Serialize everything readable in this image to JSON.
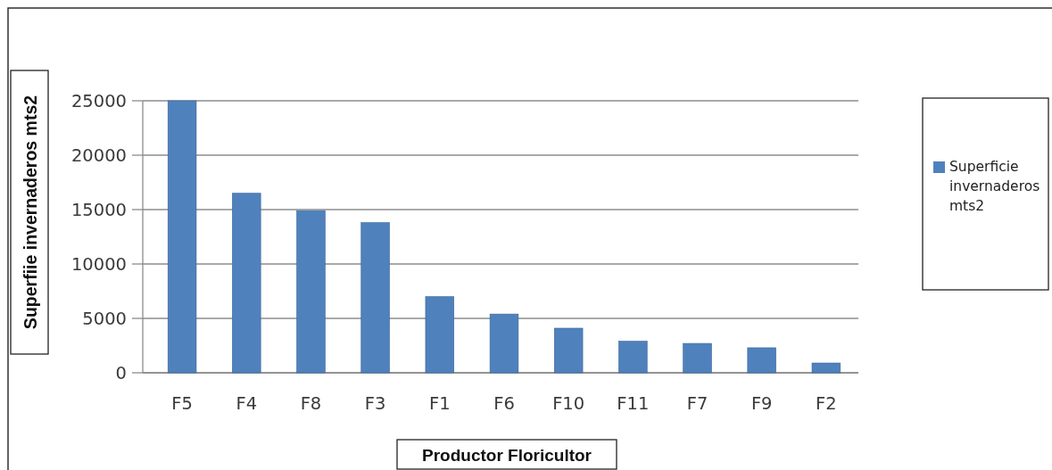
{
  "chart_data": {
    "type": "bar",
    "categories": [
      "F5",
      "F4",
      "F8",
      "F3",
      "F1",
      "F6",
      "F10",
      "F11",
      "F7",
      "F9",
      "F2"
    ],
    "series": [
      {
        "name": "Superficie invernaderos mts2",
        "color": "#4f81bd",
        "values": [
          25000,
          16500,
          14900,
          13800,
          7000,
          5400,
          4100,
          2900,
          2700,
          2300,
          900
        ]
      }
    ],
    "xlabel": "Productor Floricultor",
    "ylabel": "Superfiie invernaderos mts2",
    "ylim": [
      0,
      25000
    ],
    "yticks": [
      0,
      5000,
      10000,
      15000,
      20000,
      25000
    ],
    "grid": "y",
    "legend": "right"
  }
}
